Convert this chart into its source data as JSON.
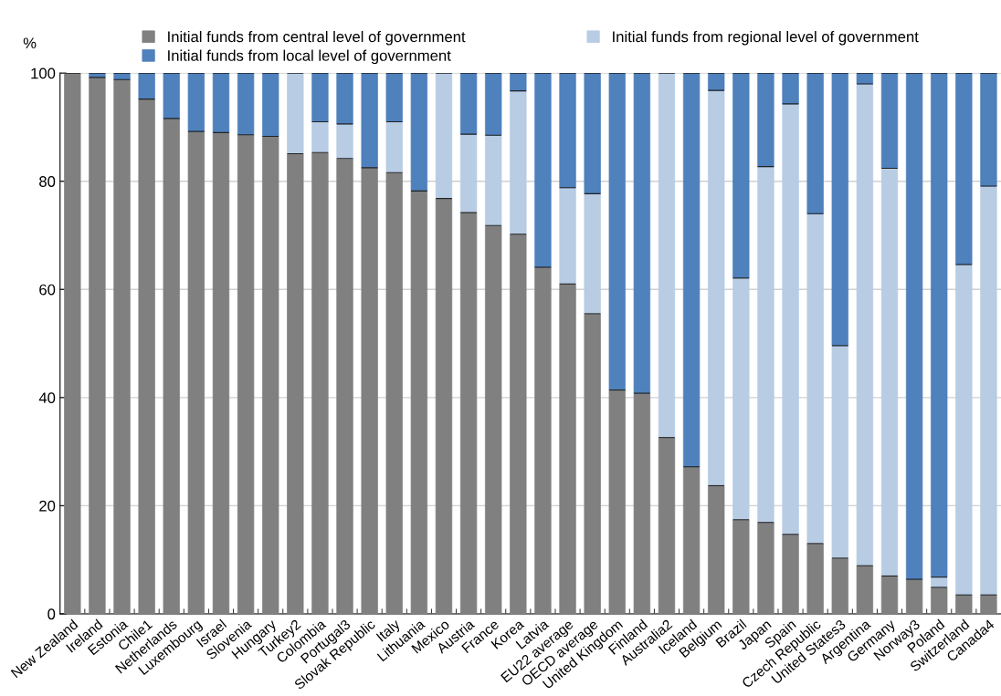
{
  "chart_data": {
    "type": "bar",
    "stacked": true,
    "ylabel": "%",
    "categories": [
      "New Zealand",
      "Ireland",
      "Estonia",
      "Chile1",
      "Netherlands",
      "Luxembourg",
      "Israel",
      "Slovenia",
      "Hungary",
      "Turkey2",
      "Colombia",
      "Portugal3",
      "Slovak Republic",
      "Italy",
      "Lithuania",
      "Mexico",
      "Austria",
      "France",
      "Korea",
      "Latvia",
      "EU22 average",
      "OECD average",
      "United Kingdom",
      "Finland",
      "Australia2",
      "Iceland",
      "Belgium",
      "Brazil",
      "Japan",
      "Spain",
      "Czech Republic",
      "United States3",
      "Argentina",
      "Germany",
      "Norway3",
      "Poland",
      "Switzerland",
      "Canada4"
    ],
    "series": [
      {
        "name": "Initial funds from central level of government",
        "color": "#808080",
        "values": [
          100,
          99.2,
          98.8,
          95.2,
          91.6,
          89.2,
          89,
          88.6,
          88.3,
          85.1,
          85.3,
          84.2,
          82.5,
          81.6,
          78.2,
          76.8,
          74.2,
          71.8,
          70.2,
          64.1,
          61,
          55.5,
          41.4,
          40.8,
          32.6,
          27.2,
          23.7,
          17.4,
          16.9,
          14.7,
          13,
          10.3,
          8.9,
          7,
          6.4,
          4.9,
          3.5,
          3.5
        ]
      },
      {
        "name": "Initial funds from regional level of government",
        "color": "#b8cce4",
        "values": [
          0,
          0,
          0,
          0,
          0,
          0,
          0,
          0,
          0,
          14.9,
          5.7,
          6.4,
          0,
          9.4,
          0,
          23.2,
          14.5,
          16.7,
          26.5,
          0,
          17.8,
          22.2,
          0,
          0,
          67.4,
          0,
          73.1,
          44.7,
          65.8,
          79.6,
          61,
          39.3,
          89.1,
          75.4,
          0,
          1.9,
          61.1,
          75.6
        ]
      },
      {
        "name": "Initial funds from local level of government",
        "color": "#4f81bd",
        "values": [
          0,
          0.8,
          1.2,
          4.8,
          8.4,
          10.8,
          11,
          11.4,
          11.7,
          0,
          9,
          9.4,
          17.5,
          9,
          21.8,
          0,
          11.3,
          11.5,
          3.3,
          35.9,
          21.2,
          22.3,
          58.6,
          59.2,
          0,
          72.8,
          3.2,
          37.9,
          17.3,
          5.7,
          26,
          50.4,
          2,
          17.6,
          93.6,
          93.2,
          35.4,
          20.9
        ]
      }
    ],
    "ylim": [
      0,
      100
    ],
    "yticks": [
      0,
      20,
      40,
      60,
      80,
      100
    ],
    "grid": "y",
    "legend": "top"
  }
}
